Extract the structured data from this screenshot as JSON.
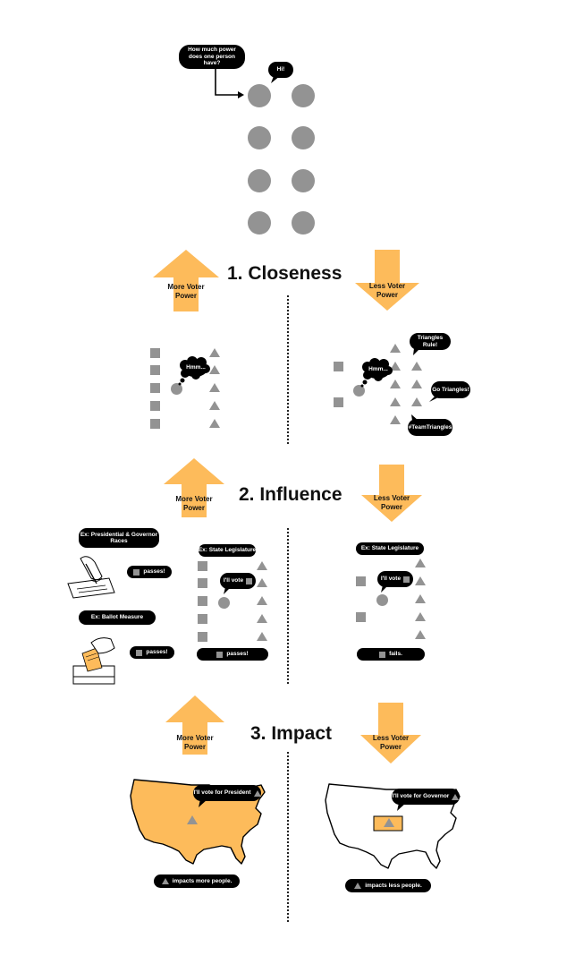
{
  "intro": {
    "question": "How much power does one person have?",
    "greeting": "Hi!"
  },
  "colors": {
    "accent": "#FDBB5B",
    "shape_gray": "#939393",
    "ink": "#000000"
  },
  "sections": [
    {
      "title": "1. Closeness",
      "more_label": "More Voter Power",
      "less_label": "Less Voter Power",
      "more_bubble": "Hmm...",
      "less_bubble": "Hmm...",
      "less_chatter": [
        "Triangles Rule!",
        "Go Triangles!",
        "#TeamTriangles"
      ]
    },
    {
      "title": "2. Influence",
      "more_label": "More Voter Power",
      "less_label": "Less Voter Power",
      "more_examples": [
        {
          "label": "Ex: Presidential & Governor Races",
          "result": "passes!"
        },
        {
          "label": "Ex: Ballot Measure",
          "result": "passes!"
        },
        {
          "label": "Ex: State Legislature",
          "bubble": "I'll vote",
          "result": "passes!"
        }
      ],
      "less_example": {
        "label": "Ex: State Legislature",
        "bubble": "I'll vote",
        "result": "fails."
      }
    },
    {
      "title": "3. Impact",
      "more_label": "More Voter Power",
      "less_label": "Less Voter Power",
      "more_bubble": "I'll vote for President",
      "less_bubble": "I'll vote for Governor",
      "more_result": "impacts more people.",
      "less_result": "impacts less people."
    }
  ]
}
